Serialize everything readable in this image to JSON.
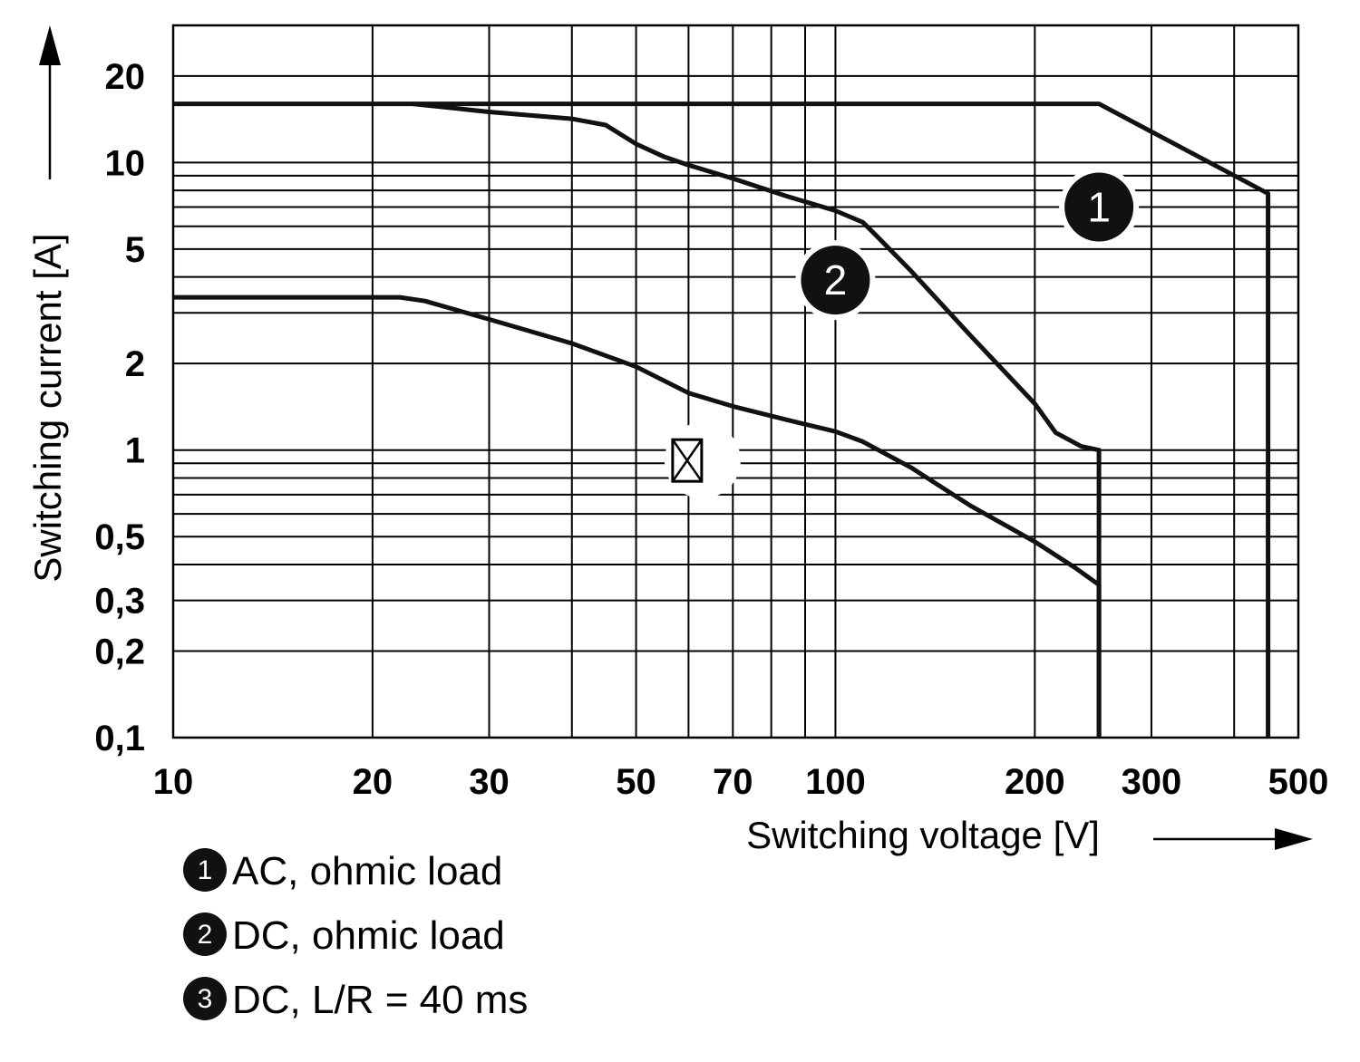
{
  "chart_data": {
    "type": "line",
    "xlabel": "Switching voltage [V]",
    "ylabel": "Switching current [A]",
    "xscale": "log",
    "yscale": "log",
    "xlim": [
      10,
      500
    ],
    "ylim": [
      0.1,
      30
    ],
    "grid": true,
    "x_ticks": [
      {
        "value": 10,
        "label": "10"
      },
      {
        "value": 20,
        "label": "20"
      },
      {
        "value": 30,
        "label": "30"
      },
      {
        "value": 50,
        "label": "50"
      },
      {
        "value": 70,
        "label": "70"
      },
      {
        "value": 100,
        "label": "100"
      },
      {
        "value": 200,
        "label": "200"
      },
      {
        "value": 300,
        "label": "300"
      },
      {
        "value": 500,
        "label": "500"
      }
    ],
    "y_ticks": [
      {
        "value": 0.1,
        "label": "0,1"
      },
      {
        "value": 0.2,
        "label": "0,2"
      },
      {
        "value": 0.3,
        "label": "0,3"
      },
      {
        "value": 0.5,
        "label": "0,5"
      },
      {
        "value": 1,
        "label": "1"
      },
      {
        "value": 2,
        "label": "2"
      },
      {
        "value": 5,
        "label": "5"
      },
      {
        "value": 10,
        "label": "10"
      },
      {
        "value": 20,
        "label": "20"
      }
    ],
    "x_gridlines": [
      10,
      20,
      30,
      40,
      50,
      60,
      70,
      80,
      90,
      100,
      200,
      300,
      400,
      500
    ],
    "y_gridlines": [
      0.1,
      0.2,
      0.3,
      0.4,
      0.5,
      0.6,
      0.7,
      0.8,
      0.9,
      1,
      2,
      3,
      4,
      5,
      6,
      7,
      8,
      9,
      10,
      20,
      30
    ],
    "series": [
      {
        "name": "AC, ohmic load",
        "badge": "1",
        "label_point": [
          250,
          7
        ],
        "points": [
          [
            10,
            16
          ],
          [
            250,
            16
          ],
          [
            450,
            7.8
          ],
          [
            450,
            0.1
          ]
        ]
      },
      {
        "name": "DC, ohmic load",
        "badge": "2",
        "label_point": [
          100,
          3.9
        ],
        "points": [
          [
            23,
            16
          ],
          [
            30,
            15
          ],
          [
            40,
            14.2
          ],
          [
            45,
            13.5
          ],
          [
            50,
            11.6
          ],
          [
            55,
            10.5
          ],
          [
            60,
            9.8
          ],
          [
            70,
            8.8
          ],
          [
            85,
            7.6
          ],
          [
            100,
            6.8
          ],
          [
            110,
            6.2
          ],
          [
            115,
            5.6
          ],
          [
            130,
            4.2
          ],
          [
            160,
            2.5
          ],
          [
            200,
            1.45
          ],
          [
            215,
            1.15
          ],
          [
            235,
            1.03
          ],
          [
            250,
            1.0
          ],
          [
            250,
            0.1
          ]
        ]
      },
      {
        "name": "DC, L/R = 40 ms",
        "badge": "3",
        "points": [
          [
            10,
            3.4
          ],
          [
            22,
            3.4
          ],
          [
            24,
            3.3
          ],
          [
            30,
            2.85
          ],
          [
            40,
            2.35
          ],
          [
            50,
            1.95
          ],
          [
            60,
            1.58
          ],
          [
            70,
            1.42
          ],
          [
            85,
            1.27
          ],
          [
            100,
            1.16
          ],
          [
            110,
            1.07
          ],
          [
            130,
            0.87
          ],
          [
            160,
            0.64
          ],
          [
            200,
            0.48
          ],
          [
            230,
            0.39
          ],
          [
            250,
            0.34
          ],
          [
            250,
            0.1
          ]
        ]
      }
    ],
    "annotation": {
      "x": 63,
      "y": 0.92
    }
  }
}
